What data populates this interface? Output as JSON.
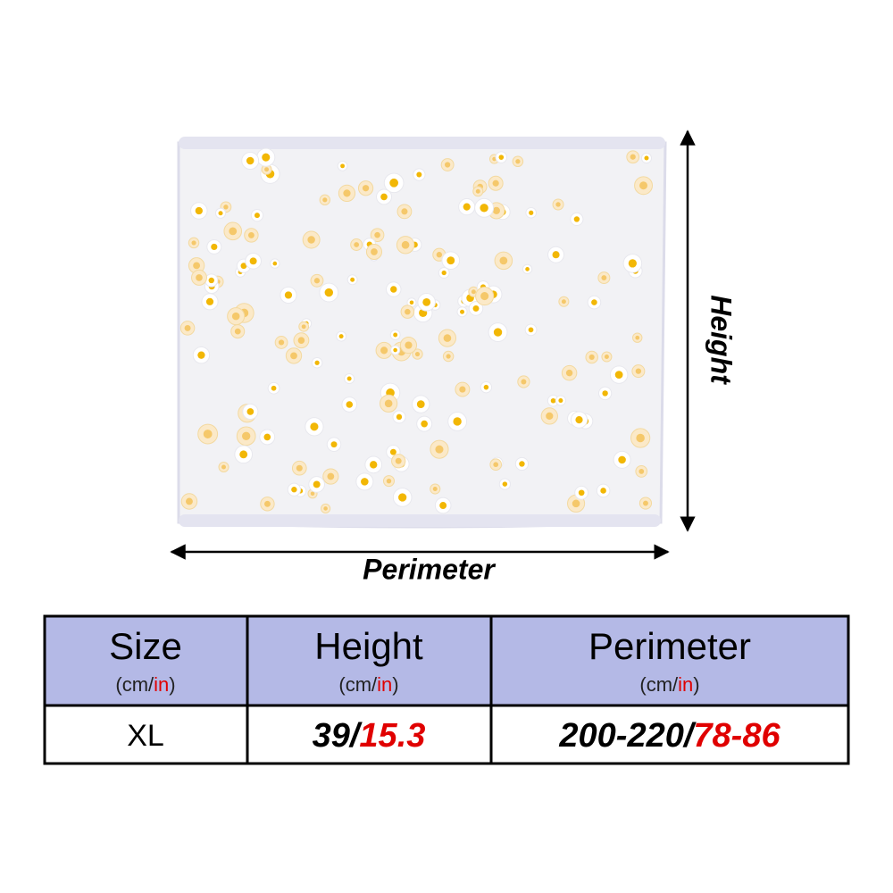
{
  "image": {
    "height_label": "Height",
    "perimeter_label": "Perimeter"
  },
  "table": {
    "header": [
      {
        "title": "Size",
        "unit": [
          "(cm/",
          "in",
          ")"
        ]
      },
      {
        "title": "Height",
        "unit": [
          "(cm/",
          "in",
          ")"
        ]
      },
      {
        "title": "Perimeter",
        "unit": [
          "(cm/",
          "in",
          ")"
        ]
      }
    ],
    "rows": [
      [
        "XL",
        [
          "39/",
          "15.3"
        ],
        [
          "200-220/",
          "78-86"
        ]
      ]
    ]
  }
}
